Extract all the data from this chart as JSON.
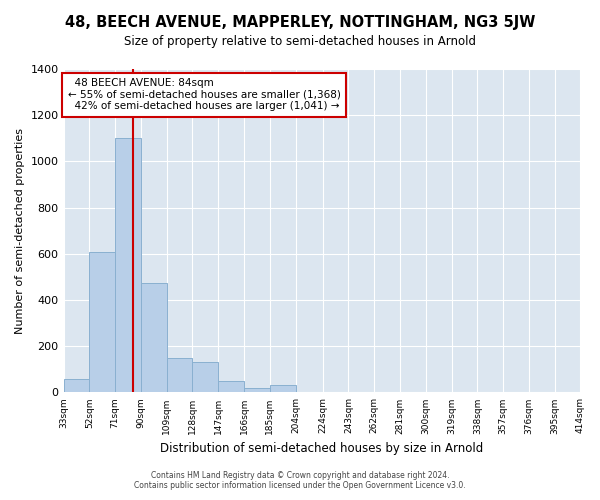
{
  "title_line1": "48, BEECH AVENUE, MAPPERLEY, NOTTINGHAM, NG3 5JW",
  "title_line2": "Size of property relative to semi-detached houses in Arnold",
  "xlabel": "Distribution of semi-detached houses by size in Arnold",
  "ylabel": "Number of semi-detached properties",
  "property_size": 84,
  "property_label": "48 BEECH AVENUE: 84sqm",
  "pct_smaller": 55,
  "pct_larger": 42,
  "n_smaller": 1368,
  "n_larger": 1041,
  "bar_color": "#b8cfe8",
  "bar_edge_color": "#8ab0d0",
  "vline_color": "#cc0000",
  "annotation_box_edge": "#cc0000",
  "background_color": "#dce6f0",
  "bin_edges": [
    33,
    52,
    71,
    90,
    109,
    128,
    147,
    166,
    185,
    204,
    224,
    243,
    262,
    281,
    300,
    319,
    338,
    357,
    376,
    395,
    414
  ],
  "bin_labels": [
    "33sqm",
    "52sqm",
    "71sqm",
    "90sqm",
    "109sqm",
    "128sqm",
    "147sqm",
    "166sqm",
    "185sqm",
    "204sqm",
    "224sqm",
    "243sqm",
    "262sqm",
    "281sqm",
    "300sqm",
    "319sqm",
    "338sqm",
    "357sqm",
    "376sqm",
    "395sqm",
    "414sqm"
  ],
  "bar_heights": [
    60,
    610,
    1100,
    475,
    150,
    130,
    50,
    20,
    30,
    0,
    0,
    0,
    0,
    0,
    0,
    0,
    0,
    0,
    0,
    0
  ],
  "ylim": [
    0,
    1400
  ],
  "yticks": [
    0,
    200,
    400,
    600,
    800,
    1000,
    1200,
    1400
  ],
  "footer_line1": "Contains HM Land Registry data © Crown copyright and database right 2024.",
  "footer_line2": "Contains public sector information licensed under the Open Government Licence v3.0."
}
